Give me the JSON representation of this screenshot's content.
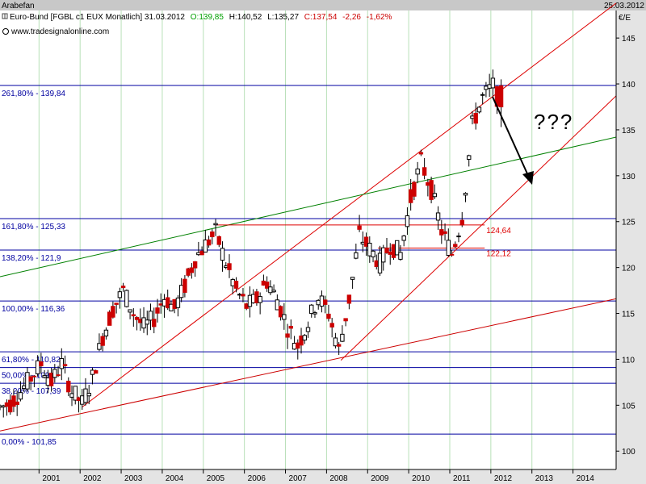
{
  "window": {
    "title": "Arabefan",
    "date": "25.03.2012"
  },
  "header": {
    "instrument": "Euro-Bund [FGBL c1 EUX  Monatlich] 31.03.2012",
    "open": "O:139,85",
    "high": "H:140,52",
    "low": "L:135,27",
    "close": "C:137,54",
    "change": "-2,26",
    "change_pct": "-1,62%",
    "source": "www.tradesignalonline.com",
    "currency": "€/E"
  },
  "colors": {
    "fib": "#0000a0",
    "up": "#ffffff",
    "down": "#cc0000",
    "candle_line": "#000000",
    "channel": "#dd0000",
    "trend_green": "#008000",
    "support_red": "#cc0000",
    "grid": "#b8e0b8",
    "pos": "#00a000",
    "neg": "#cc0000"
  },
  "annotations": {
    "question": "???",
    "level_upper": "124,64",
    "level_lower": "122,12"
  },
  "chart_data": {
    "type": "candlestick",
    "ylim": [
      98,
      148
    ],
    "xlim": [
      2000.0,
      2015.0
    ],
    "y_ticks": [
      100,
      105,
      110,
      115,
      120,
      125,
      130,
      135,
      140,
      145
    ],
    "x_ticks": [
      "2001",
      "2002",
      "2003",
      "2004",
      "2005",
      "2006",
      "2007",
      "2008",
      "2009",
      "2010",
      "2011",
      "2012",
      "2013",
      "2014"
    ],
    "grid": true,
    "fibonacci": [
      {
        "label": "261,80% - 139,84",
        "value": 139.84
      },
      {
        "label": "161,80% - 125,33",
        "value": 125.33
      },
      {
        "label": "138,20% - 121,9",
        "value": 121.9
      },
      {
        "label": "100,00% - 116,36",
        "value": 116.36
      },
      {
        "label": "61,80% - 110,82",
        "value": 110.82
      },
      {
        "label": "50,00% - 109,1",
        "value": 109.1
      },
      {
        "label": "38,20% - 107,39",
        "value": 107.39
      },
      {
        "label": "0,00% - 101,85",
        "value": 101.85
      }
    ],
    "levels": [
      {
        "label": "124,64",
        "value": 124.64,
        "x_from": 2005.25,
        "x_to": 2011.8
      },
      {
        "label": "122,12",
        "value": 122.12,
        "x_from": 2009.2,
        "x_to": 2011.8
      }
    ],
    "trendlines": [
      {
        "name": "channel_upper",
        "from": [
          2002.0,
          104.8
        ],
        "to": [
          2015.0,
          148.8
        ]
      },
      {
        "name": "channel_lower",
        "from": [
          2008.3,
          109.9
        ],
        "to": [
          2015.0,
          138.7
        ]
      },
      {
        "name": "trend_green",
        "from": [
          2000.0,
          119.0
        ],
        "to": [
          2015.0,
          134.2
        ]
      },
      {
        "name": "support_long",
        "from": [
          2000.0,
          102.2
        ],
        "to": [
          2015.0,
          116.6
        ]
      }
    ],
    "candles_sampled": [
      [
        2000.0,
        104.5,
        105.5,
        103.5,
        104.8
      ],
      [
        2000.25,
        104.8,
        106.0,
        104.0,
        105.2
      ],
      [
        2000.5,
        105.2,
        107.0,
        104.8,
        106.5
      ],
      [
        2000.75,
        106.5,
        109.5,
        106.0,
        108.0
      ],
      [
        2001.0,
        108.0,
        110.5,
        107.5,
        109.5
      ],
      [
        2001.25,
        109.5,
        110.0,
        106.5,
        107.5
      ],
      [
        2001.5,
        107.5,
        110.5,
        107.0,
        109.5
      ],
      [
        2001.75,
        109.5,
        110.0,
        105.5,
        106.5
      ],
      [
        2002.0,
        106.5,
        107.0,
        104.5,
        105.2
      ],
      [
        2002.25,
        105.2,
        108.5,
        105.0,
        108.0
      ],
      [
        2002.5,
        108.0,
        113.0,
        107.5,
        112.5
      ],
      [
        2002.75,
        112.5,
        116.5,
        112.0,
        115.5
      ],
      [
        2003.0,
        115.5,
        118.5,
        114.5,
        117.5
      ],
      [
        2003.25,
        117.5,
        120.0,
        114.0,
        115.0
      ],
      [
        2003.5,
        115.0,
        116.5,
        112.5,
        113.5
      ],
      [
        2003.75,
        113.5,
        115.5,
        112.0,
        114.5
      ],
      [
        2004.0,
        114.5,
        117.5,
        113.5,
        116.8
      ],
      [
        2004.25,
        116.8,
        118.5,
        115.0,
        115.5
      ],
      [
        2004.5,
        115.5,
        118.5,
        115.0,
        118.0
      ],
      [
        2004.75,
        118.0,
        121.5,
        117.5,
        121.0
      ],
      [
        2005.0,
        121.0,
        123.5,
        120.0,
        122.5
      ],
      [
        2005.25,
        122.5,
        124.8,
        121.5,
        123.8
      ],
      [
        2005.5,
        123.8,
        124.5,
        119.5,
        120.5
      ],
      [
        2005.75,
        120.5,
        121.0,
        116.5,
        117.5
      ],
      [
        2006.0,
        117.5,
        118.0,
        115.0,
        115.8
      ],
      [
        2006.25,
        115.8,
        117.5,
        115.0,
        116.5
      ],
      [
        2006.5,
        116.5,
        119.5,
        116.0,
        118.5
      ],
      [
        2006.75,
        118.5,
        119.5,
        115.5,
        116.5
      ],
      [
        2007.0,
        116.5,
        117.5,
        112.5,
        113.5
      ],
      [
        2007.25,
        113.5,
        114.5,
        110.0,
        111.5
      ],
      [
        2007.5,
        111.5,
        114.5,
        111.0,
        114.0
      ],
      [
        2007.75,
        114.0,
        117.5,
        113.5,
        116.8
      ],
      [
        2008.0,
        116.8,
        118.5,
        114.5,
        115.0
      ],
      [
        2008.25,
        115.0,
        115.5,
        110.0,
        111.0
      ],
      [
        2008.5,
        111.0,
        117.0,
        110.5,
        116.5
      ],
      [
        2008.75,
        116.5,
        124.5,
        116.0,
        123.5
      ],
      [
        2009.0,
        123.5,
        124.8,
        120.5,
        122.0
      ],
      [
        2009.25,
        122.0,
        122.5,
        118.0,
        120.5
      ],
      [
        2009.5,
        120.5,
        123.0,
        120.0,
        122.5
      ],
      [
        2009.75,
        122.5,
        123.5,
        120.5,
        121.5
      ],
      [
        2010.0,
        121.5,
        128.0,
        121.0,
        127.5
      ],
      [
        2010.25,
        127.5,
        134.5,
        127.0,
        131.5
      ],
      [
        2010.5,
        131.5,
        132.5,
        127.5,
        128.5
      ],
      [
        2010.75,
        128.5,
        129.0,
        123.5,
        124.0
      ],
      [
        2011.0,
        124.0,
        124.5,
        119.5,
        121.5
      ],
      [
        2011.25,
        121.5,
        126.0,
        121.0,
        125.5
      ],
      [
        2011.5,
        125.5,
        137.0,
        125.0,
        135.5
      ],
      [
        2011.75,
        135.5,
        139.5,
        134.0,
        138.5
      ],
      [
        2012.0,
        138.5,
        140.5,
        137.0,
        139.8
      ],
      [
        2012.2,
        139.8,
        140.5,
        135.3,
        137.5
      ]
    ]
  }
}
